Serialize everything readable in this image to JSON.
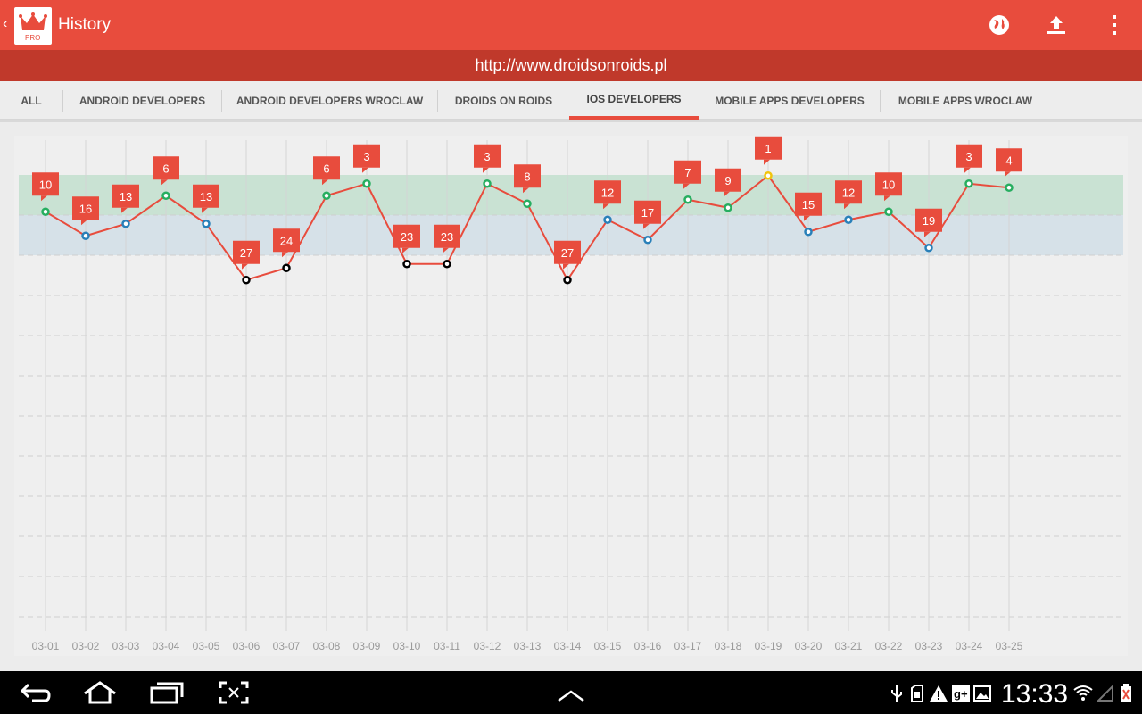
{
  "app": {
    "title": "History",
    "icon_badge": "PRO",
    "url": "http://www.droidsonroids.pl"
  },
  "actions": [
    {
      "name": "globe-icon"
    },
    {
      "name": "upload-icon"
    },
    {
      "name": "overflow-menu-icon"
    }
  ],
  "tabs": [
    {
      "label": "ALL",
      "active": false
    },
    {
      "label": "ANDROID DEVELOPERS",
      "active": false
    },
    {
      "label": "ANDROID DEVELOPERS WROCLAW",
      "active": false
    },
    {
      "label": "DROIDS ON ROIDS",
      "active": false
    },
    {
      "label": "IOS DEVELOPERS",
      "active": true
    },
    {
      "label": "MOBILE APPS DEVELOPERS",
      "active": false
    },
    {
      "label": "MOBILE APPS WROCLAW",
      "active": false
    }
  ],
  "chart_data": {
    "type": "line",
    "title": "",
    "xlabel": "",
    "ylabel": "",
    "categories": [
      "03-01",
      "03-02",
      "03-03",
      "03-04",
      "03-05",
      "03-06",
      "03-07",
      "03-08",
      "03-09",
      "03-10",
      "03-11",
      "03-12",
      "03-13",
      "03-14",
      "03-15",
      "03-16",
      "03-17",
      "03-18",
      "03-19",
      "03-20",
      "03-21",
      "03-22",
      "03-23",
      "03-24",
      "03-25"
    ],
    "series": [
      {
        "values": [
          10,
          16,
          13,
          6,
          13,
          27,
          24,
          6,
          3,
          23,
          23,
          3,
          8,
          27,
          12,
          17,
          7,
          9,
          1,
          15,
          12,
          10,
          19,
          3,
          4
        ]
      }
    ],
    "y_inverted": true,
    "bands": [
      {
        "from": 1,
        "to": 10,
        "color": "#c9e2d3"
      },
      {
        "from": 11,
        "to": 20,
        "color": "#d6e1e8"
      }
    ],
    "point_colors": {
      "top1": "#f1c40f",
      "top10": "#27ae60",
      "top20": "#2980b9",
      "other": "#000000"
    },
    "line_color": "#e84c3d",
    "label_color": "#e84c3d",
    "grid": true
  },
  "system": {
    "time": "13:33",
    "nav": [
      "back-icon",
      "home-icon",
      "recent-apps-icon",
      "screenshot-icon",
      "up-arrow-icon"
    ]
  }
}
